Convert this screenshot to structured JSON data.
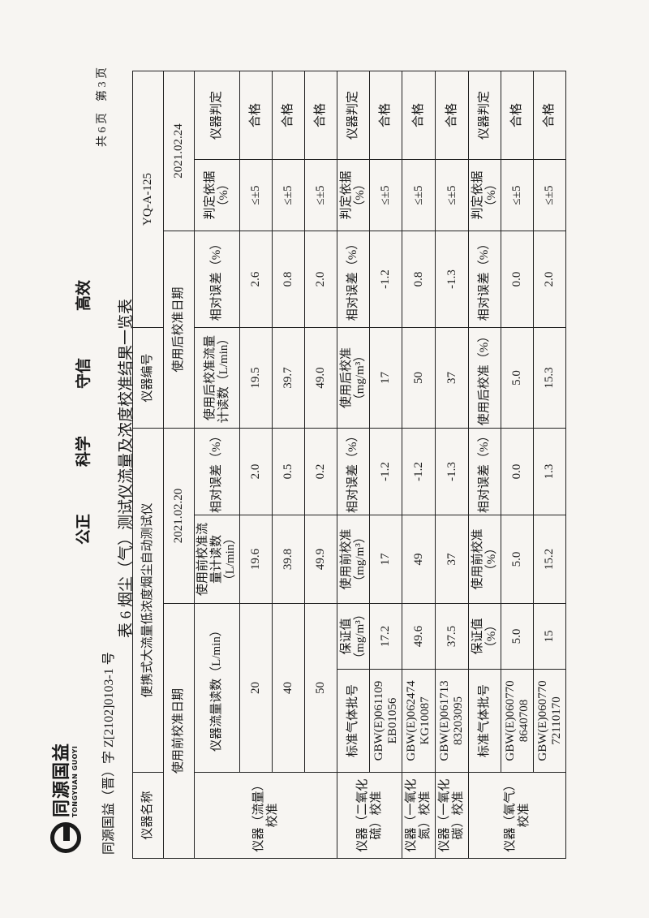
{
  "header": {
    "logo_cn": "同源国益",
    "logo_en": "TONGYUAN GUOYI",
    "doc_no": "同源国益（晋）字 Z[2102]0103-1 号",
    "slogan": [
      "公正",
      "科学",
      "守信",
      "高效"
    ],
    "page_info": "共 6 页　第 3 页"
  },
  "title": "表 6 烟尘（气）测试仪流量及浓度校准结果一览表",
  "table": {
    "instrument_name_label": "仪器名称",
    "instrument_name": "便携式大流量低浓度烟尘自动测试仪",
    "instrument_id_label": "仪器编号",
    "instrument_id": "YQ-A-125",
    "pre_date_label": "使用前校准日期",
    "pre_date": "2021.02.20",
    "post_date_label": "使用后校准日期",
    "post_date": "2021.02.24",
    "flow": {
      "group": "仪器（流量）校准",
      "headers": [
        "仪器流量读数（L/min）",
        "使用前校准流量计读数（L/min）",
        "相对误差（%）",
        "使用后校准流量计读数（L/min）",
        "相对误差（%）",
        "判定依据（%）",
        "仪器判定"
      ],
      "rows": [
        [
          "20",
          "19.6",
          "2.0",
          "19.5",
          "2.6",
          "≤±5",
          "合格"
        ],
        [
          "40",
          "39.8",
          "0.5",
          "39.7",
          "0.8",
          "≤±5",
          "合格"
        ],
        [
          "50",
          "49.9",
          "0.2",
          "49.0",
          "2.0",
          "≤±5",
          "合格"
        ]
      ]
    },
    "gas_headers": [
      "标准气体批号",
      "保证值（mg/m³）",
      "使用前校准（mg/m³）",
      "相对误差（%）",
      "使用后校准（mg/m³）",
      "相对误差（%）",
      "判定依据（%）",
      "仪器判定"
    ],
    "gas_rows": [
      {
        "group": "仪器（二氧化硫）校准",
        "values": [
          "GBW(E)061109 EB01056",
          "17.2",
          "17",
          "-1.2",
          "17",
          "-1.2",
          "≤±5",
          "合格"
        ]
      },
      {
        "group": "仪器（一氧化氮）校准",
        "values": [
          "GBW(E)062474 KG10087",
          "49.6",
          "49",
          "-1.2",
          "50",
          "0.8",
          "≤±5",
          "合格"
        ]
      },
      {
        "group": "仪器（一氧化碳）校准",
        "values": [
          "GBW(E)061713 83203095",
          "37.5",
          "37",
          "-1.3",
          "37",
          "-1.3",
          "≤±5",
          "合格"
        ]
      }
    ],
    "o2": {
      "group": "仪器（氧气）校准",
      "headers": [
        "标准气体批号",
        "保证值（%）",
        "使用前校准（%）",
        "相对误差（%）",
        "使用后校准（%）",
        "相对误差（%）",
        "判定依据（%）",
        "仪器判定"
      ],
      "rows": [
        [
          "GBW(E)060770 8640708",
          "5.0",
          "5.0",
          "0.0",
          "5.0",
          "0.0",
          "≤±5",
          "合格"
        ],
        [
          "GBW(E)060770 72110170",
          "15",
          "15.2",
          "1.3",
          "15.3",
          "2.0",
          "≤±5",
          "合格"
        ]
      ]
    }
  }
}
